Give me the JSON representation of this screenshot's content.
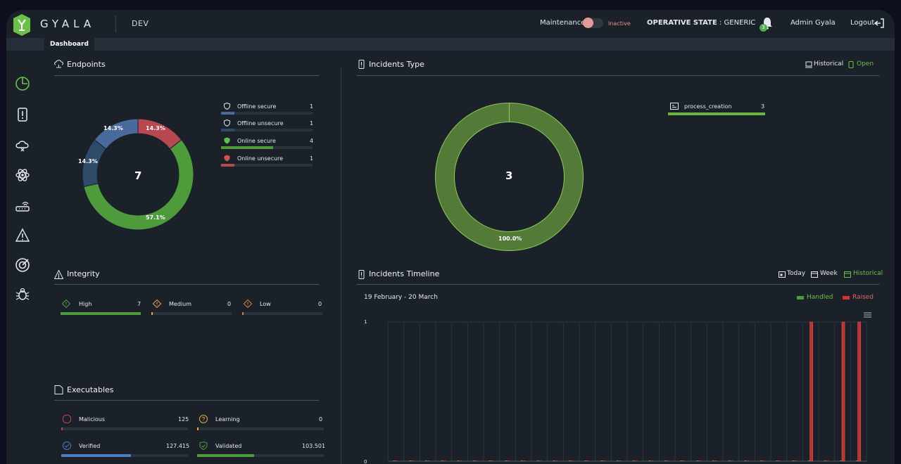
{
  "header": {
    "brand": "GYALA",
    "environment": "DEV",
    "maintenance_label": "Maintenance",
    "maintenance_status": "Inactive",
    "operative_state_label": "OPERATIVE STATE",
    "operative_state_value": "GENERIC",
    "notifications_count": "3",
    "user": "Admin Gyala",
    "logout_label": "Logout"
  },
  "tabs": [
    {
      "label": "Dashboard"
    }
  ],
  "sidebar": {
    "items": [
      {
        "icon": "dashboard-icon"
      },
      {
        "icon": "incidents-icon"
      },
      {
        "icon": "cloud-icon"
      },
      {
        "icon": "atom-icon"
      },
      {
        "icon": "router-icon"
      },
      {
        "icon": "warning-icon"
      },
      {
        "icon": "target-icon"
      },
      {
        "icon": "bug-icon"
      }
    ]
  },
  "endpoints": {
    "title": "Endpoints",
    "total": "7",
    "legend": [
      {
        "label": "Offline secure",
        "count": "1",
        "color": "#4a6a9c",
        "fraction": 0.143
      },
      {
        "label": "Offline unsecure",
        "count": "1",
        "color": "#2e4b69",
        "fraction": 0.143
      },
      {
        "label": "Online secure",
        "count": "4",
        "color": "#4e9b3c",
        "fraction": 0.571
      },
      {
        "label": "Online unsecure",
        "count": "1",
        "color": "#b8484f",
        "fraction": 0.143
      }
    ],
    "slices": [
      {
        "label": "14.3%",
        "value": 1,
        "color": "#b8484f"
      },
      {
        "label": "57.1%",
        "value": 4,
        "color": "#4e9b3c"
      },
      {
        "label": "14.3%",
        "value": 1,
        "color": "#2e4b69"
      },
      {
        "label": "14.3%",
        "value": 1,
        "color": "#4a6a9c"
      }
    ]
  },
  "incidents_type": {
    "title": "Incidents Type",
    "historical_label": "Historical",
    "open_label": "Open",
    "total": "3",
    "slice_label": "100.0%",
    "legend": [
      {
        "label": "process_creation",
        "count": "3",
        "fraction": 1.0
      }
    ]
  },
  "integrity": {
    "title": "Integrity",
    "items": [
      {
        "label": "High",
        "count": "7",
        "color": "#4e9b3c",
        "fraction": 1.0
      },
      {
        "label": "Medium",
        "count": "0",
        "color": "#e0a93a",
        "fraction": 0.02
      },
      {
        "label": "Low",
        "count": "0",
        "color": "#e07a3a",
        "fraction": 0.02
      }
    ]
  },
  "executables": {
    "title": "Executables",
    "items": [
      {
        "label": "Malicious",
        "count": "125",
        "color": "#b8484f",
        "fraction": 0.01
      },
      {
        "label": "Learning",
        "count": "0",
        "color": "#e0a93a",
        "fraction": 0.01
      },
      {
        "label": "Verified",
        "count": "127.415",
        "color": "#4a7ac0",
        "fraction": 0.55
      },
      {
        "label": "Validated",
        "count": "103.501",
        "color": "#4e9b3c",
        "fraction": 0.45
      }
    ]
  },
  "timeline": {
    "title": "Incidents Timeline",
    "today_label": "Today",
    "week_label": "Week",
    "historical_label": "Historical",
    "date_range": "19 February - 20 March",
    "legend_handled": "Handled",
    "legend_raised": "Raised",
    "y_max_label": "1",
    "y_min_label": "0"
  },
  "chart_data": [
    {
      "type": "pie",
      "title": "Endpoints",
      "categories": [
        "Offline secure",
        "Offline unsecure",
        "Online secure",
        "Online unsecure"
      ],
      "values": [
        1,
        1,
        4,
        1
      ]
    },
    {
      "type": "pie",
      "title": "Incidents Type",
      "categories": [
        "process_creation"
      ],
      "values": [
        3
      ]
    },
    {
      "type": "bar",
      "title": "Incidents Timeline",
      "categories": [
        "19 feb",
        "20 feb",
        "21 feb",
        "22 feb",
        "23 feb",
        "24 feb",
        "25 feb",
        "26 feb",
        "27 feb",
        "28 feb",
        "01 mar",
        "02 mar",
        "03 mar",
        "04 mar",
        "05 mar",
        "06 mar",
        "07 mar",
        "08 mar",
        "09 mar",
        "10 mar",
        "11 mar",
        "12 mar",
        "13 mar",
        "14 mar",
        "15 mar",
        "16 mar",
        "17 mar",
        "18 mar",
        "19 mar",
        "20 mar"
      ],
      "series": [
        {
          "name": "Handled",
          "values": [
            0,
            0,
            0,
            0,
            0,
            0,
            0,
            0,
            0,
            0,
            0,
            0,
            0,
            0,
            0,
            0,
            0,
            0,
            0,
            0,
            0,
            0,
            0,
            0,
            0,
            0,
            0,
            0,
            0,
            0
          ]
        },
        {
          "name": "Raised",
          "values": [
            0,
            0,
            0,
            0,
            0,
            0,
            0,
            0,
            0,
            0,
            0,
            0,
            0,
            0,
            0,
            0,
            0,
            0,
            0,
            0,
            0,
            0,
            0,
            0,
            0,
            0,
            1,
            0,
            1,
            1
          ]
        }
      ],
      "ylim": [
        0,
        1
      ]
    }
  ]
}
